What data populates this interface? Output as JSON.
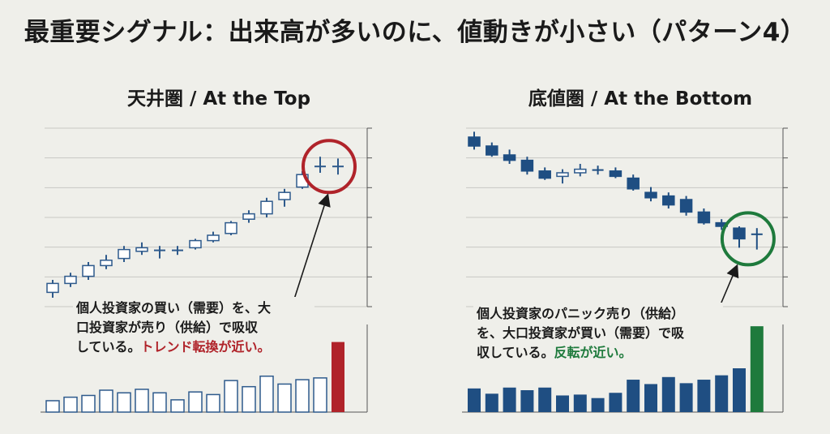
{
  "title": "最重要シグナル：出来高が多いのに、値動きが小さい（パターン4）",
  "colors": {
    "up_candle": "#ffffff",
    "up_outline": "#2e5a8c",
    "down_candle": "#1f4e82",
    "grid": "#c8c8c4",
    "highlight_red": "#b0232a",
    "highlight_green": "#1e7a3c"
  },
  "panels": {
    "left": {
      "title": "天井圏 / At the Top",
      "note_lines": [
        "個人投資家の買い（需要）を、大",
        "口投資家が売り（供給）で吸収",
        "している。"
      ],
      "note_highlight": "トレンド転換が近い。"
    },
    "right": {
      "title": "底値圏 / At the Bottom",
      "note_lines": [
        "個人投資家のパニック売り（供給）",
        "を、大口投資家が買い（需要）で吸",
        "収している。"
      ],
      "note_highlight": "反転が近い。"
    }
  },
  "chart_data": [
    {
      "type": "candlestick",
      "title": "天井圏 / At the Top",
      "price_range": [
        0,
        100
      ],
      "grid": true,
      "candles": [
        {
          "o": 8,
          "h": 15,
          "l": 5,
          "c": 13
        },
        {
          "o": 13,
          "h": 19,
          "l": 11,
          "c": 17
        },
        {
          "o": 17,
          "h": 25,
          "l": 15,
          "c": 23
        },
        {
          "o": 23,
          "h": 29,
          "l": 21,
          "c": 26
        },
        {
          "o": 27,
          "h": 34,
          "l": 25,
          "c": 32
        },
        {
          "o": 31,
          "h": 36,
          "l": 29,
          "c": 33
        },
        {
          "o": 31,
          "h": 34,
          "l": 27,
          "c": 32
        },
        {
          "o": 31,
          "h": 34,
          "l": 29,
          "c": 32
        },
        {
          "o": 33,
          "h": 38,
          "l": 32,
          "c": 37
        },
        {
          "o": 37,
          "h": 42,
          "l": 36,
          "c": 40
        },
        {
          "o": 41,
          "h": 48,
          "l": 40,
          "c": 47
        },
        {
          "o": 49,
          "h": 54,
          "l": 47,
          "c": 52
        },
        {
          "o": 52,
          "h": 61,
          "l": 50,
          "c": 59
        },
        {
          "o": 60,
          "h": 66,
          "l": 56,
          "c": 64
        },
        {
          "o": 67,
          "h": 76,
          "l": 66,
          "c": 74
        },
        {
          "o": 78,
          "h": 84,
          "l": 75,
          "c": 79
        },
        {
          "o": 78,
          "h": 83,
          "l": 74,
          "c": 79
        }
      ],
      "volume": {
        "range": [
          0,
          100
        ],
        "values": [
          13,
          17,
          19,
          25,
          22,
          26,
          22,
          14,
          23,
          20,
          36,
          29,
          41,
          32,
          37,
          39,
          80
        ],
        "highlight_last": true
      }
    },
    {
      "type": "candlestick",
      "title": "底値圏 / At the Bottom",
      "price_range": [
        0,
        100
      ],
      "grid": true,
      "candles": [
        {
          "o": 95,
          "h": 98,
          "l": 88,
          "c": 90
        },
        {
          "o": 90,
          "h": 92,
          "l": 84,
          "c": 85
        },
        {
          "o": 85,
          "h": 88,
          "l": 80,
          "c": 82
        },
        {
          "o": 82,
          "h": 84,
          "l": 74,
          "c": 76
        },
        {
          "o": 76,
          "h": 78,
          "l": 71,
          "c": 72
        },
        {
          "o": 73,
          "h": 77,
          "l": 69,
          "c": 75
        },
        {
          "o": 75,
          "h": 80,
          "l": 73,
          "c": 77
        },
        {
          "o": 77,
          "h": 79,
          "l": 74,
          "c": 76
        },
        {
          "o": 76,
          "h": 78,
          "l": 72,
          "c": 73
        },
        {
          "o": 72,
          "h": 74,
          "l": 65,
          "c": 66
        },
        {
          "o": 64,
          "h": 67,
          "l": 59,
          "c": 61
        },
        {
          "o": 62,
          "h": 64,
          "l": 55,
          "c": 57
        },
        {
          "o": 60,
          "h": 62,
          "l": 51,
          "c": 53
        },
        {
          "o": 53,
          "h": 55,
          "l": 46,
          "c": 47
        },
        {
          "o": 47,
          "h": 49,
          "l": 43,
          "c": 45
        },
        {
          "o": 44,
          "h": 45,
          "l": 33,
          "c": 38
        },
        {
          "o": 41,
          "h": 44,
          "l": 32,
          "c": 40
        }
      ],
      "volume": {
        "range": [
          0,
          100
        ],
        "values": [
          27,
          21,
          28,
          25,
          28,
          19,
          20,
          16,
          22,
          37,
          32,
          40,
          33,
          37,
          42,
          50,
          98
        ],
        "highlight_last": true
      }
    }
  ]
}
